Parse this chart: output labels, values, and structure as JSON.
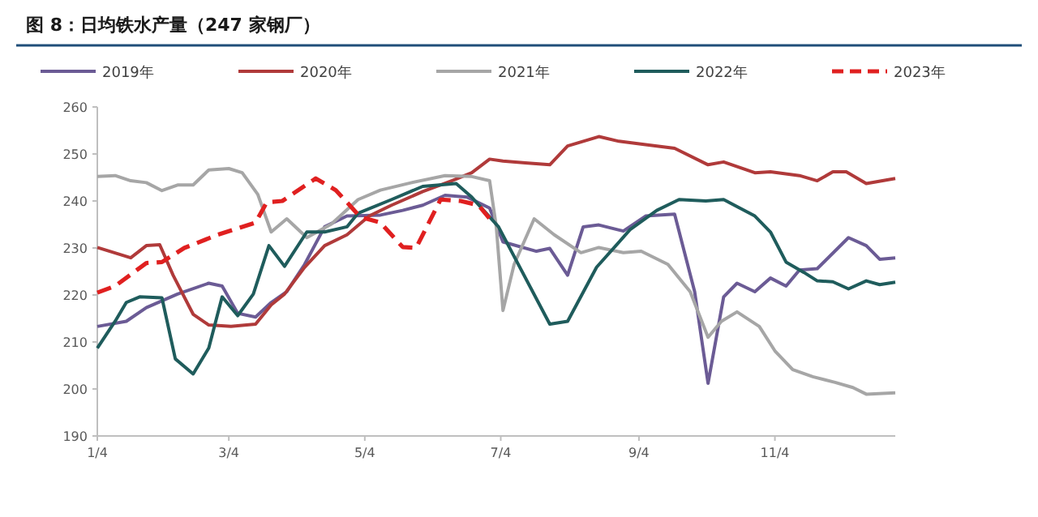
{
  "chart_data": {
    "type": "line",
    "title": "图 8：日均铁水产量（247 家钢厂）",
    "legend": "top",
    "marker": "none",
    "xlim": [
      "--01-04",
      "--12-28"
    ],
    "xticks": [
      {
        "value": "--01-04",
        "label": "1/4"
      },
      {
        "value": "--03-04",
        "label": "3/4"
      },
      {
        "value": "--05-04",
        "label": "5/4"
      },
      {
        "value": "--07-04",
        "label": "7/4"
      },
      {
        "value": "--09-04",
        "label": "9/4"
      },
      {
        "value": "--11-04",
        "label": "11/4"
      }
    ],
    "ylim": [
      190,
      260
    ],
    "yticks": [
      190,
      200,
      210,
      220,
      230,
      240,
      250,
      260
    ],
    "series": [
      {
        "name": "2019年",
        "color": "#6b5b95",
        "x": [
          "--01-04",
          "--01-17",
          "--01-26",
          "--02-09",
          "--02-23",
          "--03-01",
          "--03-08",
          "--03-16",
          "--03-23",
          "--03-30",
          "--04-07",
          "--04-16",
          "--04-26",
          "--05-11",
          "--05-21",
          "--05-30",
          "--06-09",
          "--06-19",
          "--06-29",
          "--07-05",
          "--07-20",
          "--07-26",
          "--08-03",
          "--08-10",
          "--08-17",
          "--08-28",
          "--09-07",
          "--09-20",
          "--09-29",
          "--10-05",
          "--10-12",
          "--10-18",
          "--10-26",
          "--11-02",
          "--11-09",
          "--11-15",
          "--11-23",
          "--12-07",
          "--12-15",
          "--12-21",
          "--12-28"
        ],
        "values": [
          213.3,
          214.4,
          217.3,
          220.2,
          222.5,
          221.9,
          216.1,
          215.3,
          218.4,
          220.7,
          226.5,
          234.5,
          236.8,
          237,
          238,
          239.1,
          241.2,
          240.8,
          238.5,
          231.3,
          229.3,
          229.9,
          224.2,
          234.5,
          234.9,
          233.6,
          236.8,
          237.2,
          220.7,
          201.2,
          219.6,
          222.5,
          220.7,
          223.6,
          221.9,
          225.3,
          225.6,
          232.2,
          230.5,
          227.6,
          227.9
        ]
      },
      {
        "name": "2020年",
        "color": "#b03a3a",
        "x": [
          "--01-04",
          "--01-19",
          "--01-26",
          "--02-01",
          "--02-07",
          "--02-16",
          "--02-23",
          "--03-05",
          "--03-16",
          "--03-23",
          "--03-29",
          "--04-07",
          "--04-16",
          "--04-26",
          "--05-06",
          "--05-16",
          "--05-30",
          "--06-12",
          "--06-21",
          "--06-29",
          "--07-05",
          "--07-15",
          "--07-26",
          "--08-03",
          "--08-17",
          "--08-26",
          "--09-07",
          "--09-20",
          "--10-05",
          "--10-12",
          "--10-26",
          "--11-02",
          "--11-15",
          "--11-23",
          "--11-30",
          "--12-06",
          "--12-15",
          "--12-28"
        ],
        "values": [
          230.1,
          227.9,
          230.5,
          230.7,
          224.2,
          215.9,
          213.6,
          213.3,
          213.8,
          217.9,
          220.2,
          225.9,
          230.5,
          232.8,
          236.8,
          239.1,
          242,
          244.3,
          246,
          248.9,
          248.5,
          248.1,
          247.7,
          251.7,
          253.7,
          252.7,
          252,
          251.2,
          247.7,
          248.3,
          246,
          246.2,
          245.4,
          244.3,
          246.2,
          246.2,
          243.7,
          244.8
        ]
      },
      {
        "name": "2021年",
        "color": "#a6a6a6",
        "x": [
          "--01-04",
          "--01-12",
          "--01-19",
          "--01-26",
          "--02-02",
          "--02-09",
          "--02-16",
          "--02-23",
          "--03-04",
          "--03-10",
          "--03-17",
          "--03-23",
          "--03-30",
          "--04-08",
          "--04-19",
          "--05-01",
          "--05-11",
          "--05-25",
          "--06-09",
          "--06-21",
          "--06-29",
          "--07-02",
          "--07-05",
          "--07-10",
          "--07-19",
          "--07-28",
          "--08-09",
          "--08-17",
          "--08-28",
          "--09-05",
          "--09-17",
          "--09-27",
          "--10-05",
          "--10-11",
          "--10-18",
          "--10-28",
          "--11-04",
          "--11-12",
          "--11-21",
          "--12-01",
          "--12-09",
          "--12-15",
          "--12-28"
        ],
        "values": [
          245.2,
          245.4,
          244.3,
          243.9,
          242.2,
          243.4,
          243.4,
          246.6,
          246.9,
          246,
          241.4,
          233.4,
          236.2,
          232.2,
          235.1,
          240.3,
          242.3,
          243.9,
          245.4,
          245.2,
          244.3,
          234.5,
          216.7,
          226.5,
          236.2,
          232.8,
          229,
          230.1,
          229,
          229.3,
          226.5,
          220.7,
          211,
          214.4,
          216.4,
          213.3,
          208.1,
          204.1,
          202.6,
          201.4,
          200.3,
          198.9,
          199.2
        ]
      },
      {
        "name": "2022年",
        "color": "#1f5c5c",
        "x": [
          "--01-04",
          "--01-12",
          "--01-17",
          "--01-23",
          "--02-02",
          "--02-08",
          "--02-16",
          "--02-23",
          "--03-01",
          "--03-08",
          "--03-15",
          "--03-22",
          "--03-29",
          "--04-08",
          "--04-16",
          "--04-26",
          "--05-01",
          "--05-16",
          "--05-30",
          "--06-14",
          "--06-21",
          "--07-03",
          "--07-26",
          "--08-03",
          "--08-16",
          "--08-31",
          "--09-12",
          "--09-22",
          "--10-04",
          "--10-12",
          "--10-26",
          "--11-02",
          "--11-09",
          "--11-17",
          "--11-23",
          "--11-30",
          "--12-07",
          "--12-15",
          "--12-21",
          "--12-28"
        ],
        "values": [
          208.7,
          214.4,
          218.4,
          219.6,
          219.4,
          206.4,
          203.2,
          208.7,
          219.6,
          215.6,
          220.2,
          230.5,
          226.1,
          233.4,
          233.4,
          234.5,
          237.4,
          240.3,
          243.1,
          243.7,
          240.8,
          234.5,
          213.8,
          214.4,
          225.9,
          233.9,
          238,
          240.3,
          240,
          240.3,
          236.8,
          233.4,
          227,
          224.8,
          223,
          222.8,
          221.3,
          223,
          222.2,
          222.7
        ]
      },
      {
        "name": "2023年",
        "color": "#e02020",
        "line_style": "dashed",
        "x": [
          "--01-04",
          "--01-12",
          "--01-26",
          "--02-02",
          "--02-12",
          "--02-27",
          "--03-16",
          "--03-21",
          "--03-28",
          "--04-12",
          "--04-21",
          "--05-02",
          "--05-11",
          "--05-21",
          "--05-27",
          "--06-07",
          "--06-16",
          "--06-24",
          "--07-01"
        ],
        "values": [
          220.5,
          221.9,
          226.8,
          227,
          230,
          232.8,
          235.4,
          239.7,
          240,
          244.8,
          242.3,
          236.6,
          235.4,
          230.2,
          230,
          240.3,
          240,
          239.1,
          235.1
        ]
      }
    ]
  }
}
